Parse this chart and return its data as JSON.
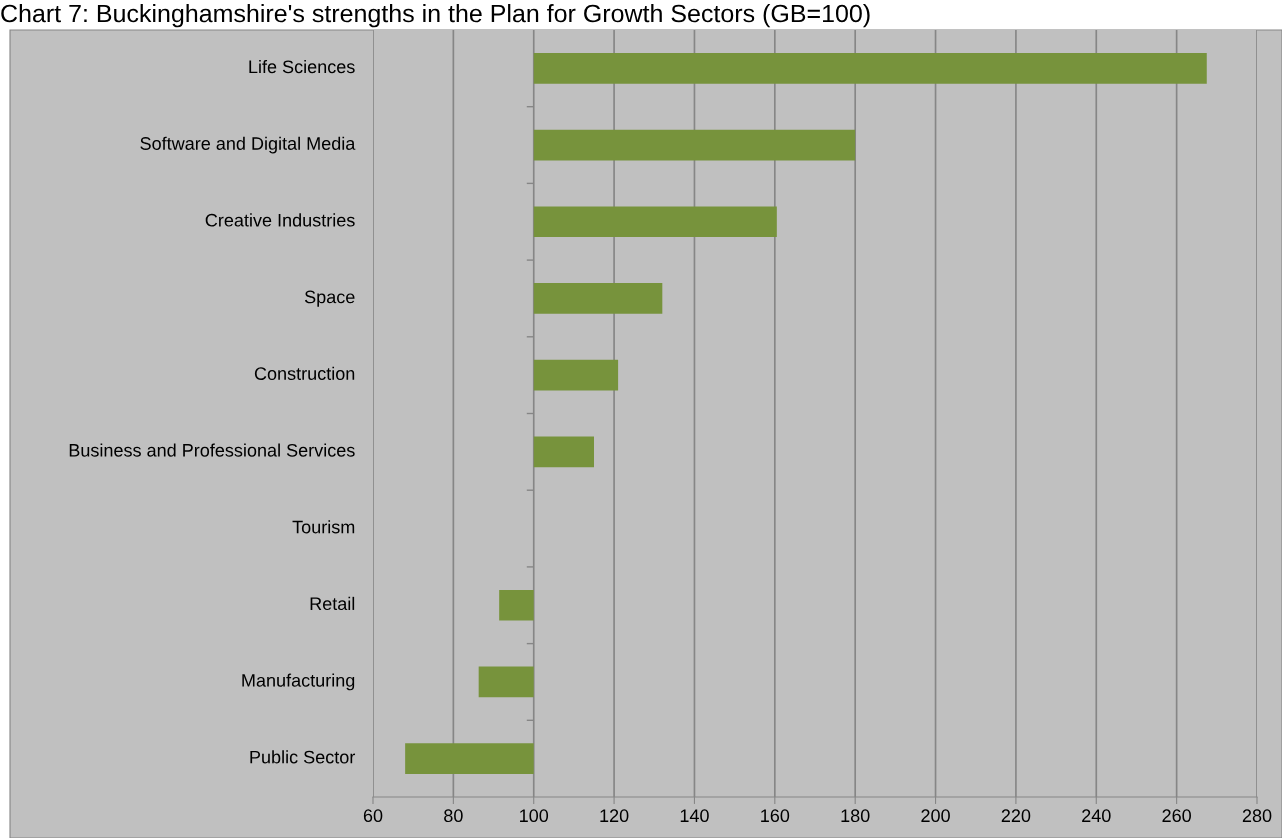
{
  "chart_data": {
    "type": "bar",
    "orientation": "horizontal",
    "title": "Chart 7: Buckinghamshire's strengths in the Plan for Growth Sectors (GB=100)",
    "categories": [
      "Life Sciences",
      "Software and Digital Media",
      "Creative Industries",
      "Space",
      "Construction",
      "Business and Professional Services",
      "Tourism",
      "Retail",
      "Manufacturing",
      "Public Sector"
    ],
    "base": [
      100,
      100,
      100,
      100,
      100,
      100,
      null,
      100,
      100,
      100
    ],
    "values": [
      167.5,
      80,
      60.5,
      32,
      21,
      15,
      null,
      -8.6,
      -13.7,
      -32
    ],
    "color": "#77933c",
    "xlim": [
      60,
      280
    ],
    "xticks": [
      60,
      80,
      100,
      120,
      140,
      160,
      180,
      200,
      220,
      240,
      260,
      280
    ],
    "grid": "x"
  }
}
